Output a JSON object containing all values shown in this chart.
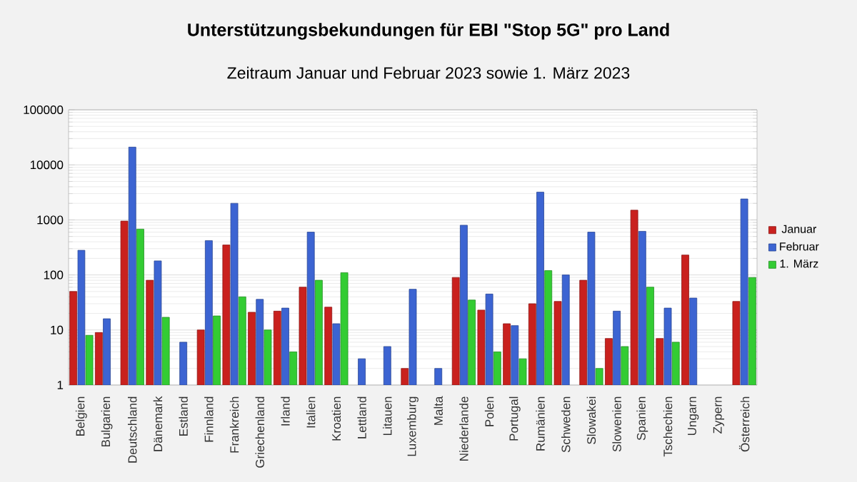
{
  "chart_data": {
    "type": "bar",
    "title": "Unterstützungsbekundungen für EBI \"Stop 5G\" pro Land",
    "subtitle": "Zeitraum Januar und Februar 2023 sowie 1. März 2023",
    "categories": [
      "Belgien",
      "Bulgarien",
      "Deutschland",
      "Dänemark",
      "Estland",
      "Finnland",
      "Frankreich",
      "Griechenland",
      "Irland",
      "Italien",
      "Kroatien",
      "Lettland",
      "Litauen",
      "Luxemburg",
      "Malta",
      "Niederlande",
      "Polen",
      "Portugal",
      "Rumänien",
      "Schweden",
      "Slowakei",
      "Slowenien",
      "Spanien",
      "Tschechien",
      "Ungarn",
      "Zypern",
      "Österreich"
    ],
    "series": [
      {
        "name": "Januar",
        "color": "#c9211e",
        "values": [
          50,
          9,
          950,
          80,
          null,
          10,
          350,
          21,
          22,
          60,
          26,
          null,
          null,
          2,
          null,
          90,
          23,
          13,
          30,
          33,
          80,
          7,
          1500,
          7,
          230,
          null,
          33
        ]
      },
      {
        "name": "Februar",
        "color": "#3c64d2",
        "values": [
          280,
          16,
          21000,
          180,
          6,
          420,
          2000,
          36,
          25,
          600,
          13,
          3,
          5,
          55,
          2,
          800,
          45,
          12,
          3200,
          100,
          600,
          22,
          620,
          25,
          38,
          null,
          2400
        ]
      },
      {
        "name": "1. März",
        "color": "#33cc33",
        "values": [
          8,
          null,
          680,
          17,
          null,
          18,
          40,
          10,
          4,
          80,
          110,
          null,
          null,
          null,
          null,
          35,
          4,
          3,
          120,
          null,
          2,
          5,
          60,
          6,
          null,
          null,
          90
        ]
      }
    ],
    "log": true,
    "ylim": [
      1,
      100000
    ],
    "yticks": [
      1,
      10,
      100,
      1000,
      10000,
      100000
    ],
    "grid": "y",
    "legend": "right"
  }
}
